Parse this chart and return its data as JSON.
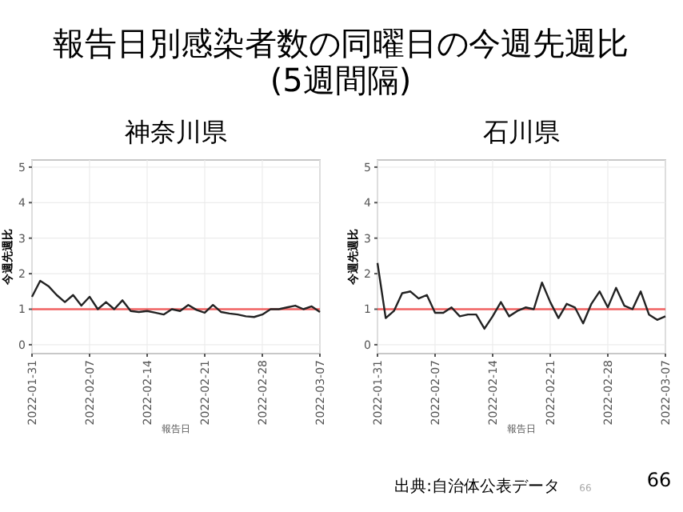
{
  "chart_data": [
    {
      "type": "line",
      "title": "神奈川県",
      "xlabel": "報告日",
      "ylabel": "今週先週比",
      "annotations": [
        "報告日別感染者数の同曜日の今週先週比",
        "(5週間隔)"
      ],
      "x": [
        "2022-01-31",
        "2022-02-01",
        "2022-02-02",
        "2022-02-03",
        "2022-02-04",
        "2022-02-05",
        "2022-02-06",
        "2022-02-07",
        "2022-02-08",
        "2022-02-09",
        "2022-02-10",
        "2022-02-11",
        "2022-02-12",
        "2022-02-13",
        "2022-02-14",
        "2022-02-15",
        "2022-02-16",
        "2022-02-17",
        "2022-02-18",
        "2022-02-19",
        "2022-02-20",
        "2022-02-21",
        "2022-02-22",
        "2022-02-23",
        "2022-02-24",
        "2022-02-25",
        "2022-02-26",
        "2022-02-27",
        "2022-02-28",
        "2022-03-01",
        "2022-03-02",
        "2022-03-03",
        "2022-03-04",
        "2022-03-05",
        "2022-03-06",
        "2022-03-07"
      ],
      "series": [
        {
          "color": "#222222",
          "values": [
            1.35,
            1.8,
            1.65,
            1.4,
            1.2,
            1.4,
            1.1,
            1.35,
            1.0,
            1.2,
            1.0,
            1.25,
            0.95,
            0.92,
            0.95,
            0.9,
            0.85,
            1.0,
            0.95,
            1.12,
            0.98,
            0.9,
            1.12,
            0.92,
            0.88,
            0.85,
            0.8,
            0.78,
            0.85,
            1.0,
            1.0,
            1.05,
            1.1,
            1.0,
            1.08,
            0.92
          ]
        }
      ],
      "ylim": [
        -0.25,
        5.2
      ],
      "yticks": [
        0,
        1,
        2,
        3,
        4,
        5
      ],
      "xlim": [
        "2022-01-31",
        "2022-03-07"
      ],
      "xticks": [
        "2022-01-31",
        "2022-02-07",
        "2022-02-14",
        "2022-02-21",
        "2022-02-28",
        "2022-03-07"
      ],
      "grid": true,
      "line_style": "solid",
      "ref_lines": [
        {
          "axis": "y",
          "value": 1,
          "color": "#f06060"
        }
      ]
    },
    {
      "type": "line",
      "title": "石川県",
      "xlabel": "報告日",
      "ylabel": "今週先週比",
      "annotations": [
        "出典:自治体公表データ",
        "66",
        "66"
      ],
      "x": [
        "2022-01-31",
        "2022-02-01",
        "2022-02-02",
        "2022-02-03",
        "2022-02-04",
        "2022-02-05",
        "2022-02-06",
        "2022-02-07",
        "2022-02-08",
        "2022-02-09",
        "2022-02-10",
        "2022-02-11",
        "2022-02-12",
        "2022-02-13",
        "2022-02-14",
        "2022-02-15",
        "2022-02-16",
        "2022-02-17",
        "2022-02-18",
        "2022-02-19",
        "2022-02-20",
        "2022-02-21",
        "2022-02-22",
        "2022-02-23",
        "2022-02-24",
        "2022-02-25",
        "2022-02-26",
        "2022-02-27",
        "2022-02-28",
        "2022-03-01",
        "2022-03-02",
        "2022-03-03",
        "2022-03-04",
        "2022-03-05",
        "2022-03-06",
        "2022-03-07"
      ],
      "series": [
        {
          "color": "#222222",
          "values": [
            2.3,
            0.75,
            0.95,
            1.45,
            1.5,
            1.3,
            1.4,
            0.9,
            0.9,
            1.05,
            0.8,
            0.85,
            0.85,
            0.45,
            0.8,
            1.2,
            0.8,
            0.95,
            1.05,
            1.0,
            1.75,
            1.2,
            0.75,
            1.15,
            1.05,
            0.6,
            1.15,
            1.5,
            1.05,
            1.6,
            1.1,
            1.0,
            1.5,
            0.85,
            0.7,
            0.8
          ]
        }
      ],
      "ylim": [
        -0.25,
        5.2
      ],
      "yticks": [
        0,
        1,
        2,
        3,
        4,
        5
      ],
      "xlim": [
        "2022-01-31",
        "2022-03-07"
      ],
      "xticks": [
        "2022-01-31",
        "2022-02-07",
        "2022-02-14",
        "2022-02-21",
        "2022-02-28",
        "2022-03-07"
      ],
      "grid": true,
      "line_style": "solid",
      "ref_lines": [
        {
          "axis": "y",
          "value": 1,
          "color": "#f06060"
        }
      ]
    }
  ]
}
